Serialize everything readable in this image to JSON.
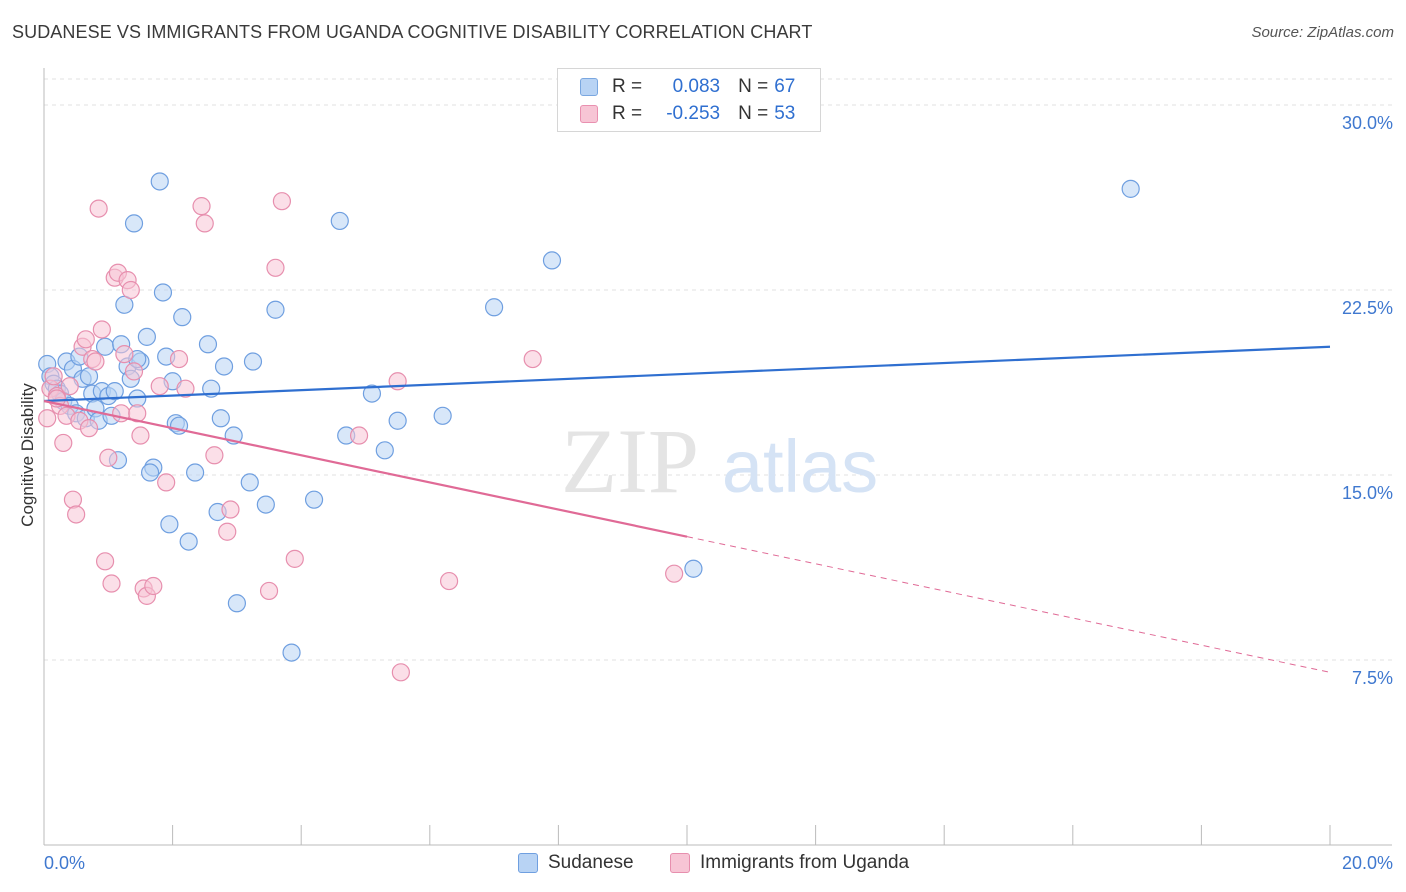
{
  "title": "SUDANESE VS IMMIGRANTS FROM UGANDA COGNITIVE DISABILITY CORRELATION CHART",
  "source": "Source: ZipAtlas.com",
  "watermark": {
    "zip": "ZIP",
    "atlas": "atlas"
  },
  "legend": {
    "rows": [
      {
        "r_label": "R =",
        "r_value": "0.083",
        "n_label": "N =",
        "n_value": "67",
        "fill": "#b8d3f4",
        "stroke": "#7aa7e0"
      },
      {
        "r_label": "R =",
        "r_value": "-0.253",
        "n_label": "N =",
        "n_value": "53",
        "fill": "#f7c5d5",
        "stroke": "#e990b0"
      }
    ]
  },
  "chart_data": {
    "type": "scatter",
    "ylabel": "Cognitive Disability",
    "xlim": [
      0,
      20
    ],
    "ylim": [
      0,
      31.5
    ],
    "x_tick_labels": [
      "0.0%",
      "20.0%"
    ],
    "y_ticks": [
      7.5,
      15.0,
      22.5,
      30.0
    ],
    "y_tick_labels": [
      "7.5%",
      "15.0%",
      "22.5%",
      "30.0%"
    ],
    "grid": true,
    "legend_position": "top-center",
    "series": [
      {
        "name": "Sudanese",
        "color": "#6f9fe0",
        "fill": "#b8d3f4",
        "line_color": "#2f6fd0",
        "trend": {
          "x": [
            0.0,
            20.0
          ],
          "y": [
            18.0,
            20.2
          ],
          "dashed_from": null
        },
        "points": [
          [
            0.05,
            19.5
          ],
          [
            0.1,
            19.0
          ],
          [
            0.15,
            18.7
          ],
          [
            0.2,
            18.5
          ],
          [
            0.25,
            18.3
          ],
          [
            0.3,
            18.0
          ],
          [
            0.35,
            19.6
          ],
          [
            0.4,
            17.8
          ],
          [
            0.45,
            19.3
          ],
          [
            0.5,
            17.5
          ],
          [
            0.55,
            19.8
          ],
          [
            0.6,
            18.9
          ],
          [
            0.65,
            17.3
          ],
          [
            0.7,
            19.0
          ],
          [
            0.75,
            18.3
          ],
          [
            0.8,
            17.7
          ],
          [
            0.85,
            17.2
          ],
          [
            0.9,
            18.4
          ],
          [
            0.95,
            20.2
          ],
          [
            1.0,
            18.2
          ],
          [
            1.05,
            17.4
          ],
          [
            1.1,
            18.4
          ],
          [
            1.15,
            15.6
          ],
          [
            1.2,
            20.3
          ],
          [
            1.25,
            21.9
          ],
          [
            1.3,
            19.4
          ],
          [
            1.35,
            18.9
          ],
          [
            1.4,
            25.2
          ],
          [
            1.45,
            18.1
          ],
          [
            1.5,
            19.6
          ],
          [
            1.6,
            20.6
          ],
          [
            1.7,
            15.3
          ],
          [
            1.65,
            15.1
          ],
          [
            1.8,
            26.9
          ],
          [
            1.85,
            22.4
          ],
          [
            1.9,
            19.8
          ],
          [
            1.95,
            13.0
          ],
          [
            2.0,
            18.8
          ],
          [
            2.05,
            17.1
          ],
          [
            2.1,
            17.0
          ],
          [
            2.15,
            21.4
          ],
          [
            2.25,
            12.3
          ],
          [
            2.35,
            15.1
          ],
          [
            2.55,
            20.3
          ],
          [
            2.6,
            18.5
          ],
          [
            2.7,
            13.5
          ],
          [
            2.75,
            17.3
          ],
          [
            2.8,
            19.4
          ],
          [
            2.95,
            16.6
          ],
          [
            3.0,
            9.8
          ],
          [
            3.2,
            14.7
          ],
          [
            3.25,
            19.6
          ],
          [
            3.45,
            13.8
          ],
          [
            3.6,
            21.7
          ],
          [
            3.85,
            7.8
          ],
          [
            4.2,
            14.0
          ],
          [
            4.6,
            25.3
          ],
          [
            4.7,
            16.6
          ],
          [
            5.1,
            18.3
          ],
          [
            5.3,
            16.0
          ],
          [
            5.5,
            17.2
          ],
          [
            6.2,
            17.4
          ],
          [
            7.0,
            21.8
          ],
          [
            7.9,
            23.7
          ],
          [
            10.1,
            11.2
          ],
          [
            16.9,
            26.6
          ],
          [
            1.45,
            19.7
          ]
        ]
      },
      {
        "name": "Immigrants from Uganda",
        "color": "#e78fae",
        "fill": "#f7c5d5",
        "line_color": "#e06a96",
        "trend": {
          "x": [
            0.0,
            20.0
          ],
          "y": [
            18.0,
            7.0
          ],
          "dashed_from": 10.0
        },
        "points": [
          [
            0.05,
            17.3
          ],
          [
            0.1,
            18.5
          ],
          [
            0.15,
            19.0
          ],
          [
            0.2,
            18.2
          ],
          [
            0.25,
            17.8
          ],
          [
            0.3,
            16.3
          ],
          [
            0.35,
            17.4
          ],
          [
            0.4,
            18.6
          ],
          [
            0.45,
            14.0
          ],
          [
            0.5,
            13.4
          ],
          [
            0.55,
            17.2
          ],
          [
            0.6,
            20.2
          ],
          [
            0.65,
            20.5
          ],
          [
            0.7,
            16.9
          ],
          [
            0.75,
            19.7
          ],
          [
            0.8,
            19.6
          ],
          [
            0.85,
            25.8
          ],
          [
            0.9,
            20.9
          ],
          [
            0.95,
            11.5
          ],
          [
            1.0,
            15.7
          ],
          [
            1.05,
            10.6
          ],
          [
            1.1,
            23.0
          ],
          [
            1.15,
            23.2
          ],
          [
            1.2,
            17.5
          ],
          [
            1.25,
            19.9
          ],
          [
            1.3,
            22.9
          ],
          [
            1.35,
            22.5
          ],
          [
            1.4,
            19.2
          ],
          [
            1.45,
            17.5
          ],
          [
            1.5,
            16.6
          ],
          [
            1.55,
            10.4
          ],
          [
            1.6,
            10.1
          ],
          [
            1.7,
            10.5
          ],
          [
            1.8,
            18.6
          ],
          [
            1.9,
            14.7
          ],
          [
            2.1,
            19.7
          ],
          [
            2.2,
            18.5
          ],
          [
            2.45,
            25.9
          ],
          [
            2.5,
            25.2
          ],
          [
            2.65,
            15.8
          ],
          [
            2.85,
            12.7
          ],
          [
            2.9,
            13.6
          ],
          [
            3.5,
            10.3
          ],
          [
            3.6,
            23.4
          ],
          [
            3.7,
            26.1
          ],
          [
            3.9,
            11.6
          ],
          [
            4.9,
            16.6
          ],
          [
            5.5,
            18.8
          ],
          [
            5.55,
            7.0
          ],
          [
            6.3,
            10.7
          ],
          [
            7.6,
            19.7
          ],
          [
            9.8,
            11.0
          ],
          [
            0.2,
            18.1
          ]
        ]
      }
    ]
  }
}
